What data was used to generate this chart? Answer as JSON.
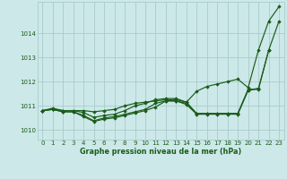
{
  "title": "Graphe pression niveau de la mer (hPa)",
  "bg_color": "#cce8e8",
  "grid_color": "#aacccc",
  "line_color": "#1a5c1a",
  "xlim": [
    -0.5,
    23.5
  ],
  "ylim": [
    1009.6,
    1015.3
  ],
  "yticks": [
    1010,
    1011,
    1012,
    1013,
    1014
  ],
  "xticks": [
    0,
    1,
    2,
    3,
    4,
    5,
    6,
    7,
    8,
    9,
    10,
    11,
    12,
    13,
    14,
    15,
    16,
    17,
    18,
    19,
    20,
    21,
    22,
    23
  ],
  "series": [
    {
      "x": [
        0,
        1,
        2,
        3,
        4,
        5,
        6,
        7,
        8,
        9,
        10,
        11,
        12,
        13,
        14,
        15,
        16,
        17,
        18,
        19,
        20,
        21,
        22,
        23
      ],
      "y": [
        1010.8,
        1010.9,
        1010.8,
        1010.8,
        1010.8,
        1010.75,
        1010.8,
        1010.85,
        1011.0,
        1011.1,
        1011.15,
        1011.2,
        1011.25,
        1011.25,
        1011.15,
        1011.6,
        1011.8,
        1011.9,
        1012.0,
        1012.1,
        1011.75,
        1013.3,
        1014.5,
        1015.1
      ]
    },
    {
      "x": [
        0,
        1,
        2,
        3,
        4,
        5,
        6,
        7,
        8,
        9,
        10,
        11,
        12,
        13,
        14,
        15,
        16,
        17,
        18,
        19,
        20,
        21,
        22,
        23
      ],
      "y": [
        1010.8,
        1010.85,
        1010.75,
        1010.75,
        1010.55,
        1010.35,
        1010.45,
        1010.5,
        1010.6,
        1010.7,
        1010.8,
        1010.95,
        1011.2,
        1011.2,
        1011.05,
        1010.65,
        1010.65,
        1010.65,
        1010.65,
        1010.65,
        1011.65,
        1011.7,
        1013.3,
        1014.5
      ]
    },
    {
      "x": [
        0,
        1,
        2,
        3,
        4,
        5,
        6,
        7,
        8,
        9,
        10,
        11,
        12,
        13,
        14,
        15,
        16,
        17,
        18,
        19,
        20,
        21,
        22
      ],
      "y": [
        1010.8,
        1010.85,
        1010.75,
        1010.75,
        1010.6,
        1010.38,
        1010.5,
        1010.55,
        1010.65,
        1010.75,
        1010.85,
        1011.1,
        1011.2,
        1011.2,
        1011.1,
        1010.68,
        1010.68,
        1010.68,
        1010.68,
        1010.68,
        1011.68,
        1011.68,
        1013.3
      ]
    },
    {
      "x": [
        0,
        1,
        2,
        3,
        4,
        5,
        6,
        7,
        8,
        9,
        10,
        11,
        12,
        13,
        14,
        15,
        16,
        17,
        18,
        19,
        20,
        21
      ],
      "y": [
        1010.8,
        1010.85,
        1010.8,
        1010.8,
        1010.72,
        1010.52,
        1010.6,
        1010.65,
        1010.8,
        1011.0,
        1011.1,
        1011.25,
        1011.3,
        1011.3,
        1011.15,
        1010.68,
        1010.68,
        1010.68,
        1010.68,
        1010.68,
        1011.65,
        1011.72
      ]
    }
  ]
}
